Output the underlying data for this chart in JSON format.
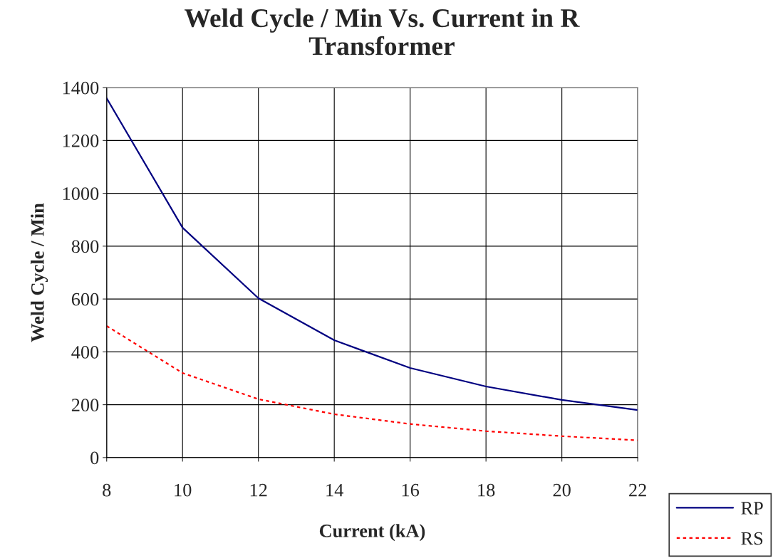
{
  "chart_data": {
    "type": "line",
    "title": "Weld Cycle / Min Vs. Current in R Transformer",
    "xlabel": "Current (kA)",
    "ylabel": "Weld Cycle / Min",
    "x": [
      8,
      10,
      12,
      14,
      16,
      18,
      20,
      22
    ],
    "series": [
      {
        "name": "RP",
        "color": "#000080",
        "line_style": "solid",
        "values": [
          1360,
          870,
          603,
          444,
          339,
          269,
          218,
          180
        ]
      },
      {
        "name": "RS",
        "color": "#ff0000",
        "line_style": "dotted",
        "values": [
          498,
          320,
          221,
          164,
          127,
          100,
          81,
          65
        ]
      }
    ],
    "xlim": [
      8,
      22
    ],
    "xticks": [
      8,
      10,
      12,
      14,
      16,
      18,
      20,
      22
    ],
    "ylim": [
      0,
      1400
    ],
    "yticks": [
      0,
      200,
      400,
      600,
      800,
      1000,
      1200,
      1400
    ],
    "grid": true,
    "legend": "bottom right",
    "marker": "none"
  }
}
